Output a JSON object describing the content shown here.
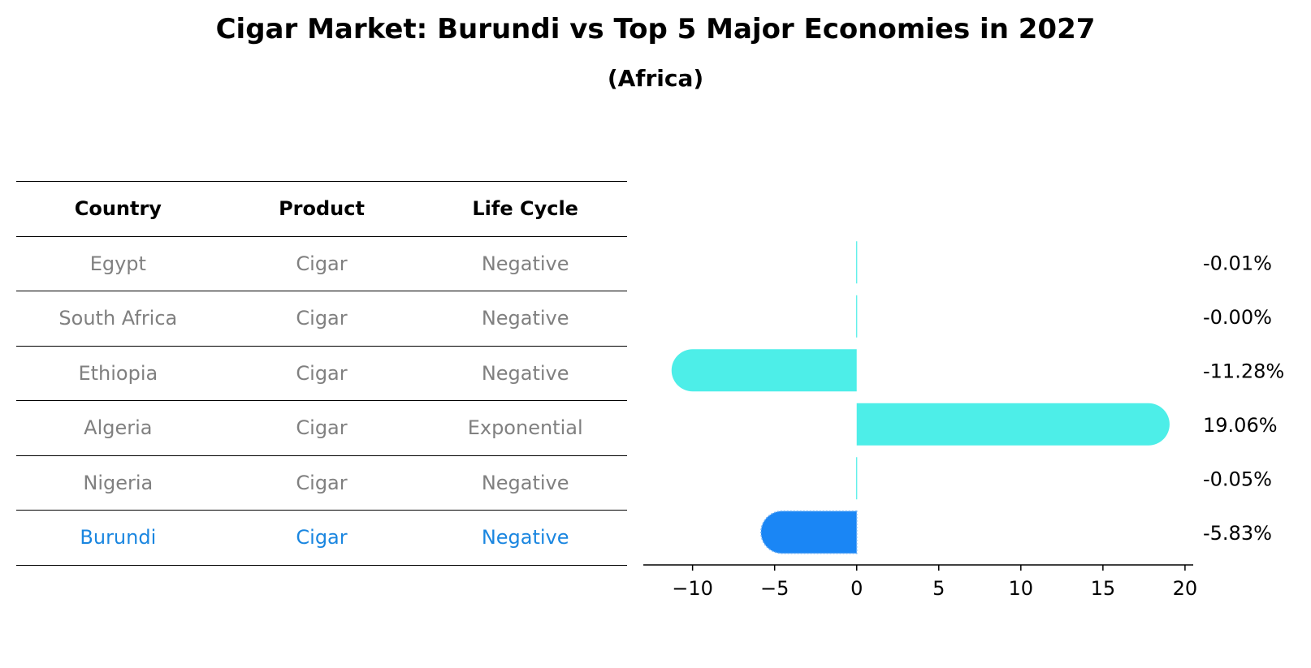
{
  "title": "Cigar Market: Burundi vs Top 5 Major Economies in 2027",
  "subtitle": "(Africa)",
  "table": {
    "headers": [
      "Country",
      "Product",
      "Life Cycle"
    ],
    "rows": [
      {
        "country": "Egypt",
        "product": "Cigar",
        "life_cycle": "Negative"
      },
      {
        "country": "South Africa",
        "product": "Cigar",
        "life_cycle": "Negative"
      },
      {
        "country": "Ethiopia",
        "product": "Cigar",
        "life_cycle": "Negative"
      },
      {
        "country": "Algeria",
        "product": "Cigar",
        "life_cycle": "Exponential"
      },
      {
        "country": "Nigeria",
        "product": "Cigar",
        "life_cycle": "Negative"
      },
      {
        "country": "Burundi",
        "product": "Cigar",
        "life_cycle": "Negative"
      }
    ]
  },
  "colors": {
    "bar": "#4deee8",
    "highlight": "#1a86f5",
    "text_muted": "#808080",
    "text_highlight": "#1a86e0"
  },
  "chart_data": {
    "type": "bar",
    "orientation": "horizontal",
    "categories": [
      "Egypt",
      "South Africa",
      "Ethiopia",
      "Algeria",
      "Nigeria",
      "Burundi"
    ],
    "values": [
      -0.01,
      -0.0,
      -11.28,
      19.06,
      -0.05,
      -5.83
    ],
    "value_labels": [
      "-0.01%",
      "-0.00%",
      "-11.28%",
      "19.06%",
      "-0.05%",
      "-5.83%"
    ],
    "highlight_category": "Burundi",
    "xlim": [
      -13,
      20.5
    ],
    "xticks": [
      -10,
      -5,
      0,
      5,
      10,
      15,
      20
    ],
    "xtick_labels": [
      "−10",
      "−5",
      "0",
      "5",
      "10",
      "15",
      "20"
    ],
    "grid": false,
    "title": "",
    "xlabel": "",
    "ylabel": ""
  }
}
